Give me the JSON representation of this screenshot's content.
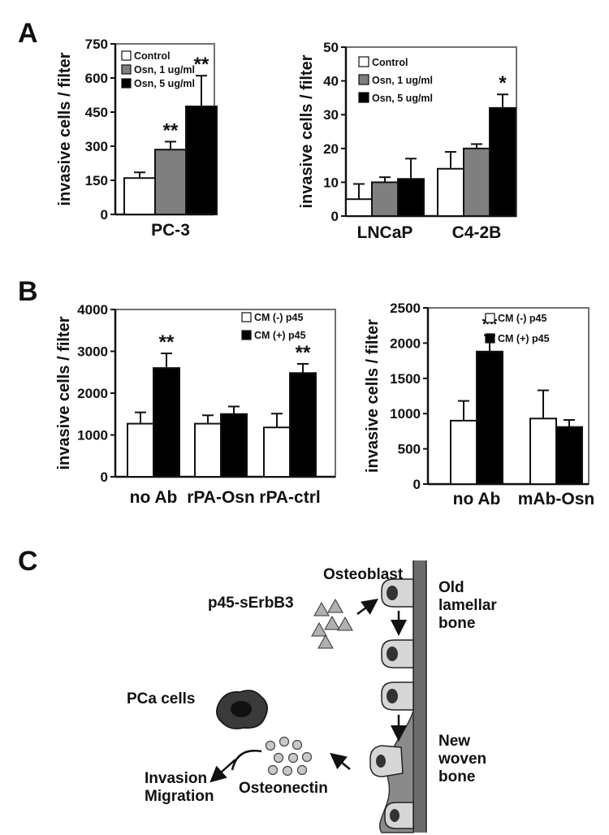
{
  "panel_labels": {
    "A": "A",
    "B": "B",
    "C": "C"
  },
  "colors": {
    "control": "#ffffff",
    "osn_1": "#7f7f7f",
    "osn_5": "#000000",
    "bone": "#6b6b6b",
    "cell": "#d6d6d6",
    "frame": "#707070"
  },
  "chart_data": [
    {
      "type": "bar",
      "panel": "A",
      "categories": [
        "PC-3"
      ],
      "series": [
        {
          "name": "Control",
          "values": [
            160
          ],
          "errors": [
            25
          ]
        },
        {
          "name": "Osn, 1 ug/ml",
          "values": [
            285
          ],
          "errors": [
            35
          ]
        },
        {
          "name": "Osn, 5 ug/ml",
          "values": [
            475
          ],
          "errors": [
            135
          ]
        }
      ],
      "significance": [
        [
          "",
          "**",
          "**"
        ]
      ],
      "ylabel": "invasive cells / filter",
      "ylim": [
        0,
        750
      ],
      "yticks": [
        "0",
        "150",
        "300",
        "450",
        "600",
        "750"
      ],
      "legend_position": "top-left",
      "grid": false
    },
    {
      "type": "bar",
      "panel": "A",
      "categories": [
        "LNCaP",
        "C4-2B"
      ],
      "series": [
        {
          "name": "Control",
          "values": [
            5,
            14
          ],
          "errors": [
            4.5,
            5
          ]
        },
        {
          "name": "Osn, 1 ug/ml",
          "values": [
            10,
            20
          ],
          "errors": [
            1.5,
            1.3
          ]
        },
        {
          "name": "Osn, 5 ug/ml",
          "values": [
            11,
            32
          ],
          "errors": [
            6,
            4
          ]
        }
      ],
      "significance": [
        [
          "",
          "",
          ""
        ],
        [
          "",
          "",
          "*"
        ]
      ],
      "ylabel": "invasive cells / filter",
      "ylim": [
        0,
        50
      ],
      "yticks": [
        "0",
        "10",
        "20",
        "30",
        "40",
        "50"
      ],
      "legend_position": "top-left",
      "grid": false
    },
    {
      "type": "bar",
      "panel": "B",
      "categories": [
        "no Ab",
        "rPA-Osn",
        "rPA-ctrl"
      ],
      "series": [
        {
          "name": "CM (-) p45",
          "values": [
            1270,
            1270,
            1180
          ],
          "errors": [
            270,
            200,
            330
          ]
        },
        {
          "name": "CM (+) p45",
          "values": [
            2600,
            1500,
            2480
          ],
          "errors": [
            350,
            180,
            220
          ]
        }
      ],
      "significance": [
        [
          "",
          "**"
        ],
        [
          "",
          ""
        ],
        [
          "",
          "**"
        ]
      ],
      "ylabel": "invasive cells / filter",
      "ylim": [
        0,
        4000
      ],
      "yticks": [
        "0",
        "1000",
        "2000",
        "3000",
        "4000"
      ],
      "legend_position": "top-right",
      "grid": false
    },
    {
      "type": "bar",
      "panel": "B",
      "categories": [
        "no Ab",
        "mAb-Osn"
      ],
      "series": [
        {
          "name": "CM (-) p45",
          "values": [
            900,
            930
          ],
          "errors": [
            280,
            400
          ]
        },
        {
          "name": "CM (+) p45",
          "values": [
            1880,
            810
          ],
          "errors": [
            230,
            100
          ]
        }
      ],
      "significance": [
        [
          "",
          "**"
        ],
        [
          "",
          ""
        ]
      ],
      "ylabel": "invasive cells / filter",
      "ylim": [
        0,
        2500
      ],
      "yticks": [
        "0",
        "500",
        "1000",
        "1500",
        "2000",
        "2500"
      ],
      "legend_position": "top-right",
      "grid": false
    }
  ],
  "diagram": {
    "osteoblast": "Osteoblast",
    "p45": "p45-sErbB3",
    "old_bone": [
      "Old",
      "lamellar",
      "bone"
    ],
    "new_bone": [
      "New",
      "woven",
      "bone"
    ],
    "pca": "PCa cells",
    "invasion": [
      "Invasion",
      "Migration"
    ],
    "osteonectin": "Osteonectin"
  }
}
